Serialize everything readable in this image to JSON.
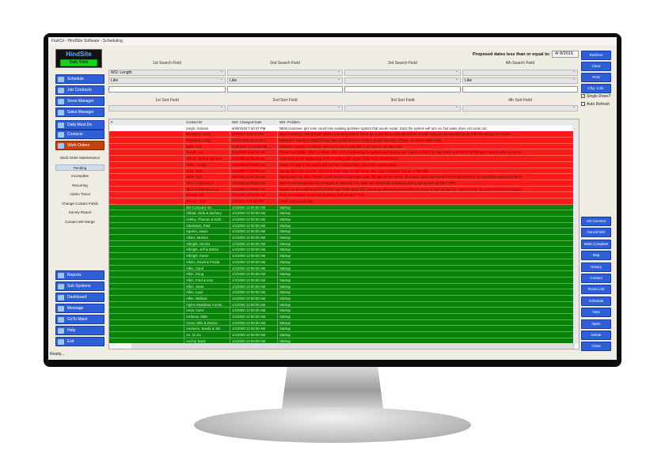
{
  "window": {
    "title": "FlairCo - HindSite Software - Scheduling",
    "status": "Ready..."
  },
  "logo": {
    "brand": "HindSite",
    "badge": "Daily Work"
  },
  "sidebar": {
    "top": [
      "Schedule",
      "Job Contracts",
      "Snow Manager",
      "Sales Manager",
      "Daily Must Do",
      "Contacts",
      "Work Orders"
    ],
    "sub": [
      "Work Order Maintenance",
      "Pending",
      "Incomplete",
      "Recurring",
      "Admin Times",
      "Change Contact Fields",
      "Survey Report",
      "Contact MS Merge"
    ],
    "bottom": [
      "Reports",
      "Sub Systems",
      "Dashboard",
      "Message",
      "GoTo Maint",
      "Help",
      "Exit"
    ]
  },
  "search": {
    "labels": [
      "1st Search Field",
      "2nd Search Field",
      "3rd Search Field",
      "4th Search Field"
    ],
    "fields": [
      "WO: Length",
      "",
      "",
      ""
    ],
    "ops": [
      "Like",
      "Like",
      "",
      "Like"
    ],
    "sort_labels": [
      "1st Sort Field",
      "2nd Sort Field",
      "3rd Sort Field",
      "4th Sort Field"
    ]
  },
  "proposed": {
    "label": "Proposed dates less than or equal to:",
    "value": "4/ 8/2016"
  },
  "right_buttons": [
    "Retrieve",
    "Clear",
    "Print",
    "Chg. Cols."
  ],
  "checks": [
    {
      "label": "Single Rows?",
      "checked": true
    },
    {
      "label": "Auto Refresh",
      "checked": false
    }
  ],
  "action_buttons": [
    "HS Connect",
    "Cancel WO",
    "Mark Complete",
    "Map",
    "History",
    "Contact",
    "Route List",
    "Schedule",
    "New",
    "Open",
    "Delete",
    "Close"
  ],
  "grid": {
    "columns": [
      "#",
      "Contact ID",
      "WO: Changed Date",
      "WO: Problem"
    ],
    "rows": [
      {
        "s": "w",
        "c": [
          "",
          "Singh, Satnam",
          "9/29/2015 7:40:47 PM",
          "NEW customer, get zone count Has existing sprinkler system that needs repair. Says the system will turn on, but water does not come out."
        ]
      },
      {
        "s": "r",
        "c": [
          "",
          "Bendtsen, Chris",
          "2/9/2017 4:20:23 PM",
          "New Customer. Just Bought Home! Get Zone Count! There are a few things that need fixed (heads replaced and ajusted along with fine tuning) for system."
        ]
      },
      {
        "s": "r",
        "c": [
          "",
          "Friedland, Cathy",
          "11/10/2016 11:12:34 A",
          "Winterize! Get Zone Count! Doug Take metal detector to try to locate backflow. Please see Steve about this."
        ]
      },
      {
        "s": "r",
        "c": [
          "",
          "Miller, Carl",
          "11/8/2016 12:19:28 PM",
          "Winterize system. Customer will not be home until after 2 pm text or call after 2pm"
        ]
      },
      {
        "s": "r",
        "c": [
          "",
          "Wendt, Lori",
          "2/14/2017 9:34:37 AM",
          "Phase Pal Repair: ONLY 1 HRS!! After 1 hr of assessing the system and making any repairs in that 1 hr time frame you MUST STOP and check in with Lori to let."
        ]
      },
      {
        "s": "r",
        "c": [
          "",
          "Abbott, Alida & Zachary",
          "1/1/2000 12:00:00 AM",
          "valve that needs replaced at time of spring start up per notes from winterization"
        ]
      },
      {
        "s": "r",
        "c": [
          "",
          "Halla, Annalei",
          "1/1/2000 12:00:00 AM",
          "Needs to have a few heads and nozzles replaced per notes from winterization"
        ]
      },
      {
        "s": "r",
        "c": [
          "",
          "Hunt, Willie",
          "1/1/2000 12:00:00 AM",
          "Spring 2017 We need to count and make note of how many alive zone customer has as of this date."
        ]
      },
      {
        "s": "r",
        "c": [
          "",
          "Miller, Tom",
          "1/1/2000 12:00:00 AM",
          "Spring Start Up 2017 Please check systems bad large water bill right before winter shut down 2016 and thinks there might need to be something addressed he th."
        ]
      },
      {
        "s": "r",
        "c": [
          "",
          "Olbin Credit Union",
          "1/1/2000 12:00:00 AM",
          "Zone 9 will not operate electronically or manually this valve will need to be assessed during spring start up 2017 TRG"
        ]
      },
      {
        "s": "r",
        "c": [
          "",
          "Olbin Credit Union La.",
          "1/1/2000 12:00:00 AM",
          "Repairs to be made in spring of 2017 per Todd. Must Get Joanna go ahead before repairs are made at spring start up. Lateral break on zone 7 in the front square."
        ]
      },
      {
        "s": "r",
        "c": [
          "",
          "Elledge, Bill",
          "1/1/2000 12:00:00 AM",
          "Leak in backyard check during spring start up 2017 TRG"
        ]
      },
      {
        "s": "r",
        "c": [
          "",
          "Benzon, Don",
          "2/9/2017 4:33:54 PM",
          "Finish wiring controller"
        ]
      },
      {
        "s": "g",
        "c": [
          "",
          "2M Company Inc.",
          "1/1/2000 12:00:00 AM",
          "Startup"
        ]
      },
      {
        "s": "g",
        "c": [
          "",
          "Abbott, Alida & Zachary",
          "1/1/2000 12:00:00 AM",
          "Startup"
        ]
      },
      {
        "s": "g",
        "c": [
          "",
          "Ackley, Thomas & Kath..",
          "1/1/2000 12:00:00 AM",
          "Startup"
        ]
      },
      {
        "s": "g",
        "c": [
          "",
          "Adelmann, Paul",
          "1/1/2000 12:00:00 AM",
          "Startup"
        ]
      },
      {
        "s": "g",
        "c": [
          "",
          "Aguero, Jason",
          "1/1/2000 12:00:00 AM",
          "Startup"
        ]
      },
      {
        "s": "g",
        "c": [
          "",
          "Aikins, Monica",
          "1/1/2000 12:00:00 AM",
          "Startup"
        ]
      },
      {
        "s": "g",
        "c": [
          "",
          "Albright, Dennis",
          "1/1/2000 12:00:00 AM",
          "Startup"
        ]
      },
      {
        "s": "g",
        "c": [
          "",
          "Albright, Jeff & Debra",
          "1/1/2000 12:00:00 AM",
          "Startup"
        ]
      },
      {
        "s": "g",
        "c": [
          "",
          "Albright, Karen",
          "1/1/2000 12:00:00 AM",
          "Startup"
        ]
      },
      {
        "s": "g",
        "c": [
          "",
          "Alkins, David & Freida",
          "1/1/2000 12:00:00 AM",
          "Startup"
        ]
      },
      {
        "s": "g",
        "c": [
          "",
          "Allen, Carol",
          "1/1/2000 12:00:00 AM",
          "Startup"
        ]
      },
      {
        "s": "g",
        "c": [
          "",
          "Allen, Doug",
          "1/1/2000 12:00:00 AM",
          "Startup"
        ]
      },
      {
        "s": "g",
        "c": [
          "",
          "Allen, Fred & Lisa",
          "1/1/2000 12:00:00 AM",
          "Startup"
        ]
      },
      {
        "s": "g",
        "c": [
          "",
          "Allen, Janet",
          "1/1/2000 12:00:00 AM",
          "Startup"
        ]
      },
      {
        "s": "g",
        "c": [
          "",
          "Allen, Lauri",
          "1/1/2000 12:00:00 AM",
          "Startup"
        ]
      },
      {
        "s": "g",
        "c": [
          "",
          "Allen, Melissa",
          "1/1/2000 12:00:00 AM",
          "Startup"
        ]
      },
      {
        "s": "g",
        "c": [
          "",
          "Alpine Meadows Comm..",
          "1/1/2000 12:00:00 AM",
          "Startup"
        ]
      },
      {
        "s": "g",
        "c": [
          "",
          "Amar, Gene",
          "1/1/2000 12:00:00 AM",
          "Startup"
        ]
      },
      {
        "s": "g",
        "c": [
          "",
          "Ambeau, Mike",
          "1/1/2000 12:00:00 AM",
          "Startup"
        ]
      },
      {
        "s": "g",
        "c": [
          "",
          "Ames, Milo & Denise",
          "1/1/2000 12:00:00 AM",
          "Startup"
        ]
      },
      {
        "s": "g",
        "c": [
          "",
          "Ammons, Sandy & Jim",
          "1/1/2000 12:00:00 AM",
          "Startup"
        ]
      },
      {
        "s": "g",
        "c": [
          "",
          "An, Gi Jia",
          "1/1/2000 12:00:00 AM",
          "Startup"
        ]
      },
      {
        "s": "g",
        "c": [
          "",
          "Anchor Bank",
          "1/1/2000 12:00:00 AM",
          "Startup"
        ]
      }
    ]
  },
  "colors": {
    "overdue": "#ff1a1a",
    "startup": "#088408",
    "button": "#2f5fd6",
    "active": "#c4420e"
  }
}
